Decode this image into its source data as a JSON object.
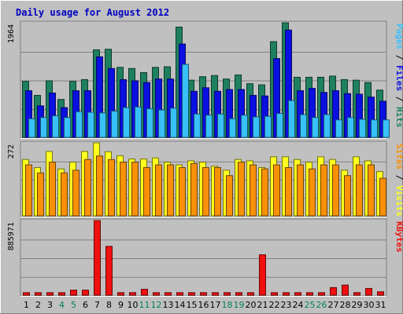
{
  "chart_data": {
    "type": "bar",
    "title": "Daily usage for August 2012",
    "categories": [
      "1",
      "2",
      "3",
      "4",
      "5",
      "6",
      "7",
      "8",
      "9",
      "10",
      "11",
      "12",
      "13",
      "14",
      "15",
      "16",
      "17",
      "18",
      "19",
      "20",
      "21",
      "22",
      "23",
      "24",
      "25",
      "26",
      "27",
      "28",
      "29",
      "30",
      "31"
    ],
    "weekend_days": [
      "4",
      "5",
      "11",
      "12",
      "18",
      "19",
      "25",
      "26"
    ],
    "panels": [
      {
        "name": "hits-files-pages",
        "max_label": "1964",
        "ymax": 1964,
        "side_label_parts": [
          "Pages",
          " / ",
          "Files",
          " / ",
          "Hits"
        ],
        "series": [
          {
            "name": "Hits",
            "color": "#1f8060",
            "values": [
              960,
              720,
              970,
              650,
              960,
              990,
              1500,
              1510,
              1200,
              1180,
              1110,
              1200,
              1210,
              1890,
              980,
              1040,
              1060,
              1000,
              1070,
              920,
              900,
              1640,
              1964,
              1030,
              1030,
              1030,
              1050,
              990,
              980,
              940,
              810
            ]
          },
          {
            "name": "Files",
            "color": "#0a10e0",
            "values": [
              800,
              540,
              760,
              510,
              800,
              800,
              1380,
              1180,
              990,
              970,
              940,
              1000,
              1000,
              1600,
              790,
              850,
              790,
              820,
              820,
              720,
              710,
              1350,
              1840,
              800,
              840,
              770,
              800,
              750,
              740,
              690,
              620
            ]
          },
          {
            "name": "Pages",
            "color": "#38c0f8",
            "values": [
              320,
              340,
              370,
              340,
              440,
              430,
              420,
              450,
              510,
              520,
              490,
              470,
              500,
              1250,
              400,
              380,
              400,
              320,
              380,
              350,
              360,
              410,
              630,
              390,
              340,
              390,
              300,
              340,
              310,
              300,
              300
            ]
          }
        ]
      },
      {
        "name": "visits-sites",
        "max_label": "272",
        "ymax": 272,
        "side_label_parts": [
          "Sites",
          " / ",
          "Visits"
        ],
        "series": [
          {
            "name": "Visits",
            "color": "#ffff20",
            "values": [
              210,
              180,
              240,
              175,
              200,
              240,
              272,
              239,
              224,
              212,
              212,
              216,
              200,
              190,
              205,
              200,
              185,
              170,
              210,
              205,
              180,
              220,
              220,
              210,
              200,
              220,
              210,
              170,
              220,
              205,
              165
            ]
          },
          {
            "name": "Sites",
            "color": "#f89008",
            "values": [
              190,
              160,
              200,
              160,
              170,
              210,
              223,
              210,
              200,
              200,
              180,
              190,
              190,
              180,
              195,
              180,
              180,
              150,
              200,
              190,
              175,
              190,
              180,
              190,
              175,
              190,
              190,
              150,
              190,
              190,
              140
            ]
          }
        ]
      },
      {
        "name": "kbytes",
        "max_label": "885971",
        "ymax": 885971,
        "side_label_parts": [
          "KBytes"
        ],
        "series": [
          {
            "name": "KBytes",
            "color": "#f01010",
            "values": [
              30000,
              30000,
              30000,
              30000,
              60000,
              60000,
              885971,
              580000,
              30000,
              30000,
              70000,
              30000,
              30000,
              30000,
              30000,
              30000,
              30000,
              30000,
              30000,
              30000,
              480000,
              30000,
              30000,
              30000,
              30000,
              30000,
              90000,
              120000,
              30000,
              80000,
              40000
            ]
          }
        ]
      }
    ]
  },
  "colors": {
    "background": "#c0c0c0",
    "title": "#0000c0",
    "weekday_label": "#000000",
    "weekend_label": "#00805c",
    "grid": "#808080"
  }
}
